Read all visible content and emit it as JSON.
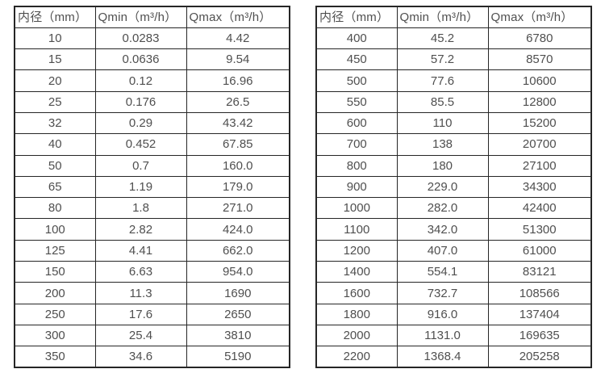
{
  "style": {
    "border_color": "#262626",
    "text_color": "#4f4f4f",
    "background_color": "#ffffff"
  },
  "chart_data": [
    {
      "type": "table",
      "title": "",
      "columns": [
        "内径（mm）",
        "Qmin（m³/h）",
        "Qmax（m³/h）"
      ],
      "rows": [
        [
          "10",
          "0.0283",
          "4.42"
        ],
        [
          "15",
          "0.0636",
          "9.54"
        ],
        [
          "20",
          "0.12",
          "16.96"
        ],
        [
          "25",
          "0.176",
          "26.5"
        ],
        [
          "32",
          "0.29",
          "43.42"
        ],
        [
          "40",
          "0.452",
          "67.85"
        ],
        [
          "50",
          "0.7",
          "160.0"
        ],
        [
          "65",
          "1.19",
          "179.0"
        ],
        [
          "80",
          "1.8",
          "271.0"
        ],
        [
          "100",
          "2.82",
          "424.0"
        ],
        [
          "125",
          "4.41",
          "662.0"
        ],
        [
          "150",
          "6.63",
          "954.0"
        ],
        [
          "200",
          "11.3",
          "1690"
        ],
        [
          "250",
          "17.6",
          "2650"
        ],
        [
          "300",
          "25.4",
          "3810"
        ],
        [
          "350",
          "34.6",
          "5190"
        ]
      ]
    },
    {
      "type": "table",
      "title": "",
      "columns": [
        "内径（mm）",
        "Qmin（m³/h）",
        "Qmax（m³/h）"
      ],
      "rows": [
        [
          "400",
          "45.2",
          "6780"
        ],
        [
          "450",
          "57.2",
          "8570"
        ],
        [
          "500",
          "77.6",
          "10600"
        ],
        [
          "550",
          "85.5",
          "12800"
        ],
        [
          "600",
          "110",
          "15200"
        ],
        [
          "700",
          "138",
          "20700"
        ],
        [
          "800",
          "180",
          "27100"
        ],
        [
          "900",
          "229.0",
          "34300"
        ],
        [
          "1000",
          "282.0",
          "42400"
        ],
        [
          "1100",
          "342.0",
          "51300"
        ],
        [
          "1200",
          "407.0",
          "61000"
        ],
        [
          "1400",
          "554.1",
          "83121"
        ],
        [
          "1600",
          "732.7",
          "108566"
        ],
        [
          "1800",
          "916.0",
          "137404"
        ],
        [
          "2000",
          "1131.0",
          "169635"
        ],
        [
          "2200",
          "1368.4",
          "205258"
        ]
      ]
    }
  ]
}
